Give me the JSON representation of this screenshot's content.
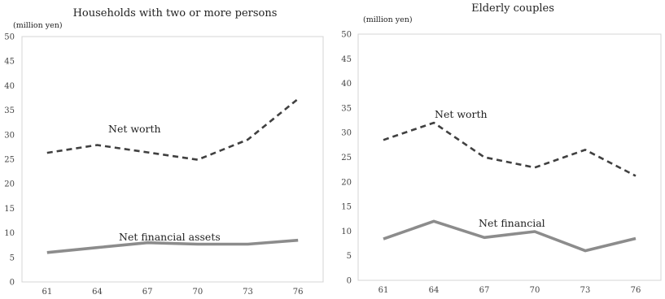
{
  "chart_data": [
    {
      "type": "line",
      "title": "Households with two or more persons",
      "unit_label": "(million yen)",
      "xlabel": "",
      "ylabel": "",
      "x": [
        "61",
        "64",
        "67",
        "70",
        "73",
        "76"
      ],
      "ylim": [
        0,
        50
      ],
      "yticks": [
        0,
        5,
        10,
        15,
        20,
        25,
        30,
        35,
        40,
        45,
        50
      ],
      "grid": false,
      "series": [
        {
          "name": "Net worth",
          "style": "dashed",
          "color": "#404040",
          "values": [
            26.3,
            27.9,
            26.4,
            24.9,
            29.0,
            37.3
          ]
        },
        {
          "name": "Net financial assets",
          "style": "solid",
          "color": "#8c8c8c",
          "values": [
            6.0,
            7.0,
            8.0,
            7.7,
            7.7,
            8.5
          ]
        }
      ]
    },
    {
      "type": "line",
      "title": "Elderly couples",
      "unit_label": "(million yen)",
      "xlabel": "",
      "ylabel": "",
      "x": [
        "61",
        "64",
        "67",
        "70",
        "73",
        "76"
      ],
      "ylim": [
        0,
        50
      ],
      "yticks": [
        0,
        5,
        10,
        15,
        20,
        25,
        30,
        35,
        40,
        45,
        50
      ],
      "grid": false,
      "series": [
        {
          "name": "Net worth",
          "style": "dashed",
          "color": "#404040",
          "values": [
            28.5,
            32.0,
            25.0,
            22.9,
            26.5,
            21.2
          ]
        },
        {
          "name": "Net financial",
          "style": "solid",
          "color": "#8c8c8c",
          "values": [
            8.4,
            12.0,
            8.7,
            9.9,
            6.0,
            8.5
          ]
        }
      ]
    }
  ]
}
